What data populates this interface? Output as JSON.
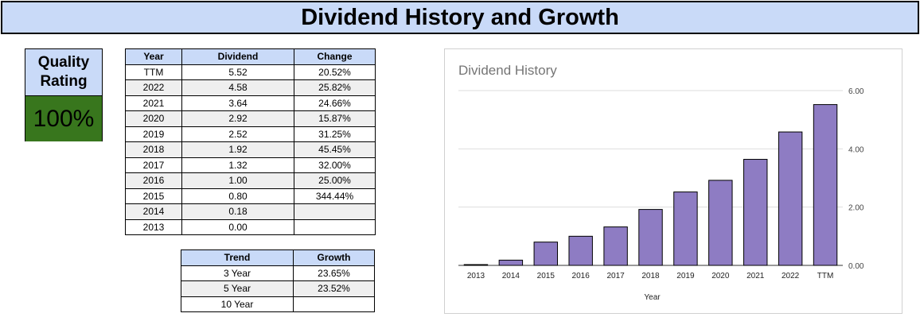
{
  "page": {
    "title": "Dividend History and Growth"
  },
  "quality": {
    "label_line1": "Quality",
    "label_line2": "Rating",
    "value": "100%",
    "value_color": "#38761d"
  },
  "history_table": {
    "headers": [
      "Year",
      "Dividend",
      "Change"
    ],
    "rows": [
      [
        "TTM",
        "5.52",
        "20.52%"
      ],
      [
        "2022",
        "4.58",
        "25.82%"
      ],
      [
        "2021",
        "3.64",
        "24.66%"
      ],
      [
        "2020",
        "2.92",
        "15.87%"
      ],
      [
        "2019",
        "2.52",
        "31.25%"
      ],
      [
        "2018",
        "1.92",
        "45.45%"
      ],
      [
        "2017",
        "1.32",
        "32.00%"
      ],
      [
        "2016",
        "1.00",
        "25.00%"
      ],
      [
        "2015",
        "0.80",
        "344.44%"
      ],
      [
        "2014",
        "0.18",
        ""
      ],
      [
        "2013",
        "0.00",
        ""
      ]
    ]
  },
  "trend_table": {
    "headers": [
      "Trend",
      "Growth"
    ],
    "rows": [
      [
        "3 Year",
        "23.65%"
      ],
      [
        "5 Year",
        "23.52%"
      ],
      [
        "10 Year",
        ""
      ]
    ]
  },
  "colors": {
    "header_bg": "#c9daf8",
    "bar": "#8e7cc3",
    "alt_row": "#efefef"
  },
  "chart_data": {
    "type": "bar",
    "title": "Dividend History",
    "xlabel": "Year",
    "ylabel": "",
    "categories": [
      "2013",
      "2014",
      "2015",
      "2016",
      "2017",
      "2018",
      "2019",
      "2020",
      "2021",
      "2022",
      "TTM"
    ],
    "values": [
      0.0,
      0.18,
      0.8,
      1.0,
      1.32,
      1.92,
      2.52,
      2.92,
      3.64,
      4.58,
      5.52
    ],
    "ylim": [
      0,
      6
    ],
    "yticks": [
      "0.00",
      "2.00",
      "4.00",
      "6.00"
    ],
    "y_axis_side": "right",
    "grid": true,
    "legend": "none"
  }
}
